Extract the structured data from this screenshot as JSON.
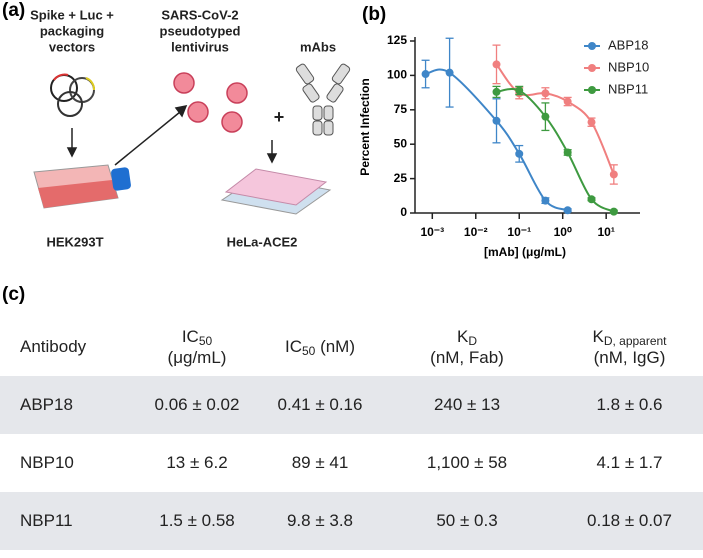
{
  "labels": {
    "a": "(a)",
    "b": "(b)",
    "c": "(c)"
  },
  "diagram": {
    "vectors": [
      "Spike + Luc +",
      "packaging",
      "vectors"
    ],
    "lentivirus": [
      "SARS-CoV-2",
      "pseudotyped",
      "lentivirus"
    ],
    "mabs": "mAbs",
    "plus": "+",
    "cells": "HEK293T",
    "target": "HeLa-ACE2"
  },
  "chart_data": {
    "type": "scatter",
    "x": [
      0.0007,
      0.0025,
      0.03,
      0.1,
      0.4,
      1.3,
      4.6,
      15
    ],
    "xlim": [
      0.0004,
      60
    ],
    "log_x": true,
    "xticks": [
      {
        "value": 0.001,
        "label": "10⁻³"
      },
      {
        "value": 0.01,
        "label": "10⁻²"
      },
      {
        "value": 0.1,
        "label": "10⁻¹"
      },
      {
        "value": 1,
        "label": "10⁰"
      },
      {
        "value": 10,
        "label": "10¹"
      }
    ],
    "ylim": [
      0,
      125
    ],
    "yticks": [
      0,
      25,
      50,
      75,
      100,
      125
    ],
    "xlabel": "[mAb] (μg/mL)",
    "ylabel": "Percent Infection",
    "legend": "upper right",
    "series": [
      {
        "name": "ABP18",
        "color": "#3f86c8",
        "values": [
          101,
          102,
          67,
          43,
          9,
          2,
          null,
          null
        ],
        "errors": [
          10,
          25,
          16,
          6,
          2,
          1,
          null,
          null
        ]
      },
      {
        "name": "NBP10",
        "color": "#f07f7f",
        "values": [
          null,
          null,
          108,
          87,
          87,
          81,
          66,
          28
        ],
        "errors": [
          null,
          null,
          14,
          4,
          4,
          3,
          3,
          7
        ]
      },
      {
        "name": "NBP11",
        "color": "#3e9a40",
        "values": [
          null,
          null,
          88,
          89,
          70,
          44,
          10,
          1
        ],
        "errors": [
          null,
          null,
          4,
          3,
          10,
          2,
          1,
          1
        ]
      }
    ]
  },
  "table": {
    "header": [
      {
        "text": "Antibody"
      },
      {
        "main": "IC",
        "sub": "50",
        "line2": "(μg/mL)"
      },
      {
        "main": "IC",
        "sub": "50",
        "tail": " (nM)"
      },
      {
        "main": "K",
        "sub": "D",
        "line2": "(nM, Fab)"
      },
      {
        "main": "K",
        "sub": "D, apparent",
        "line2": "(nM, IgG)"
      }
    ],
    "rows": [
      [
        "ABP18",
        "0.06 ± 0.02",
        "0.41 ± 0.16",
        "240 ± 13",
        "1.8 ± 0.6"
      ],
      [
        "NBP10",
        "13 ± 6.2",
        "89 ± 41",
        "1,100 ± 58",
        "4.1 ± 1.7"
      ],
      [
        "NBP11",
        "1.5 ± 0.58",
        "9.8 ± 3.8",
        "50 ± 0.3",
        "0.18 ± 0.07"
      ]
    ]
  }
}
